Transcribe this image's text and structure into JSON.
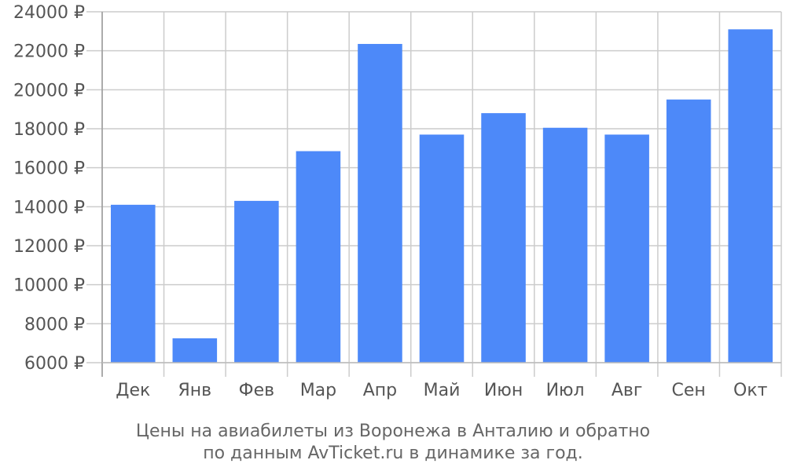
{
  "chart_data": {
    "type": "bar",
    "categories": [
      "Дек",
      "Янв",
      "Фев",
      "Мар",
      "Апр",
      "Май",
      "Июн",
      "Июл",
      "Авг",
      "Сен",
      "Окт"
    ],
    "values": [
      14100,
      7250,
      14300,
      16850,
      22350,
      17700,
      18800,
      18050,
      17700,
      19500,
      23100
    ],
    "ylim": [
      6000,
      24000
    ],
    "yticks": [
      "6000 ₽",
      "8000 ₽",
      "10000 ₽",
      "12000 ₽",
      "14000 ₽",
      "16000 ₽",
      "18000 ₽",
      "20000 ₽",
      "22000 ₽",
      "24000 ₽"
    ],
    "ytick_values": [
      6000,
      8000,
      10000,
      12000,
      14000,
      16000,
      18000,
      20000,
      22000,
      24000
    ],
    "grid": true,
    "bar_color": "#4d89f9",
    "caption_lines": [
      "Цены на авиабилеты из Воронежа в Анталию и обратно",
      "по данным AvTicket.ru в динамике за год."
    ]
  }
}
